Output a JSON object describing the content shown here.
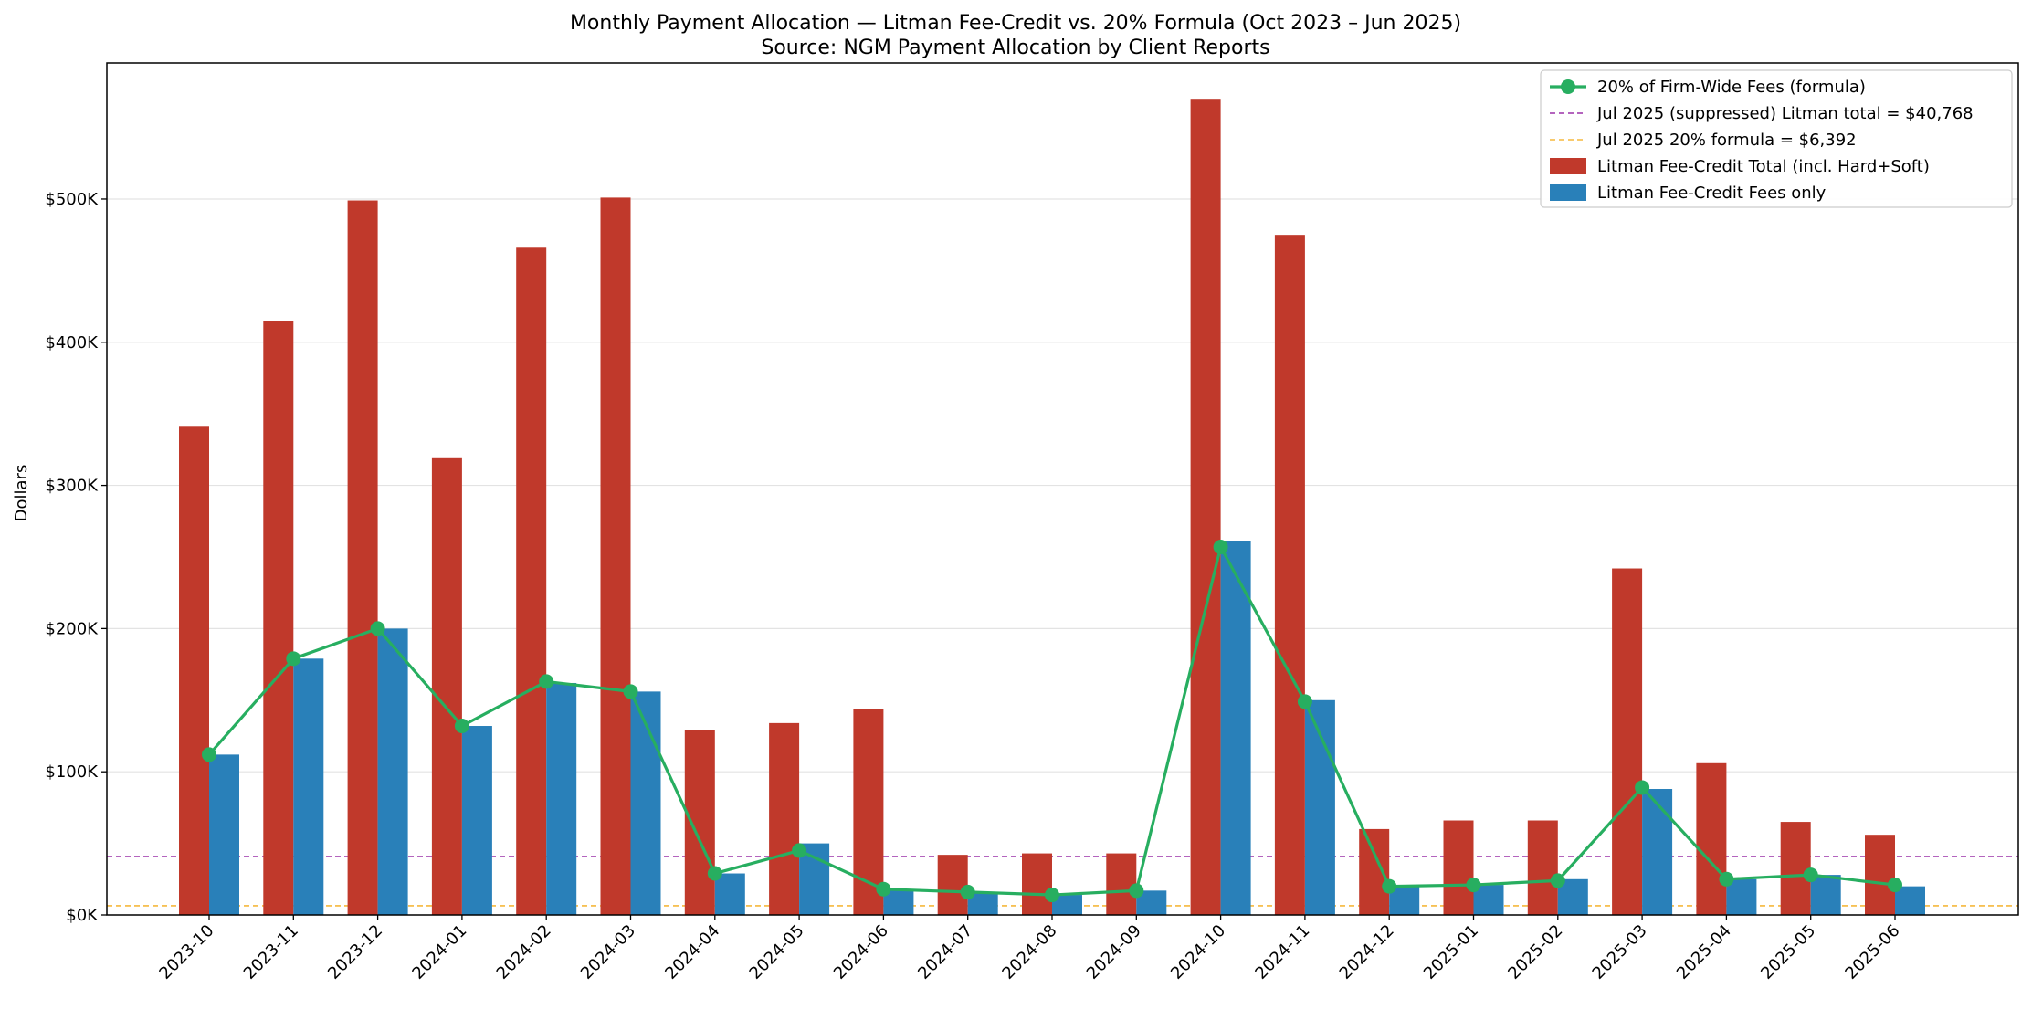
{
  "chart_data": {
    "type": "bar",
    "title": "Monthly Payment Allocation — Litman Fee-Credit vs. 20% Formula (Oct 2023 – Jun 2025)",
    "subtitle": "Source: NGM Payment Allocation by Client Reports",
    "xlabel": "",
    "ylabel": "Dollars",
    "ylim": [
      0,
      595000
    ],
    "yticks": [
      0,
      100000,
      200000,
      300000,
      400000,
      500000
    ],
    "ytick_labels": [
      "$0K",
      "$100K",
      "$200K",
      "$300K",
      "$400K",
      "$500K"
    ],
    "grid": "horizontal",
    "legend_position": "top-right",
    "categories": [
      "2023-10",
      "2023-11",
      "2023-12",
      "2024-01",
      "2024-02",
      "2024-03",
      "2024-04",
      "2024-05",
      "2024-06",
      "2024-07",
      "2024-08",
      "2024-09",
      "2024-10",
      "2024-11",
      "2024-12",
      "2025-01",
      "2025-02",
      "2025-03",
      "2025-04",
      "2025-05",
      "2025-06"
    ],
    "series": [
      {
        "name": "Litman Fee-Credit Total (incl. Hard+Soft)",
        "kind": "bar",
        "color": "#c0392b",
        "values": [
          341000,
          415000,
          499000,
          319000,
          466000,
          501000,
          129000,
          134000,
          144000,
          42000,
          43000,
          43000,
          570000,
          475000,
          60000,
          66000,
          66000,
          242000,
          106000,
          65000,
          56000
        ]
      },
      {
        "name": "Litman Fee-Credit Fees only",
        "kind": "bar",
        "color": "#2980b9",
        "values": [
          112000,
          179000,
          200000,
          132000,
          162000,
          156000,
          29000,
          50000,
          18000,
          15000,
          14000,
          17000,
          261000,
          150000,
          20000,
          21000,
          25000,
          88000,
          25000,
          28000,
          20000
        ]
      },
      {
        "name": "20% of Firm-Wide Fees (formula)",
        "kind": "line",
        "color": "#27ae60",
        "values": [
          112000,
          179000,
          200000,
          132000,
          163000,
          156000,
          29000,
          45000,
          18000,
          16000,
          14000,
          17000,
          257000,
          149000,
          20000,
          21000,
          24000,
          89000,
          25000,
          28000,
          21000
        ]
      }
    ],
    "reference_lines": [
      {
        "name": "Jul 2025 (suppressed) Litman total = $40,768",
        "value": 40768,
        "color": "#9b30a8"
      },
      {
        "name": "Jul 2025 20% formula = $6,392",
        "value": 6392,
        "color": "#f5b83d"
      }
    ],
    "legend_order": [
      "20% of Firm-Wide Fees (formula)",
      "Jul 2025 (suppressed) Litman total = $40,768",
      "Jul 2025 20% formula = $6,392",
      "Litman Fee-Credit Total (incl. Hard+Soft)",
      "Litman Fee-Credit Fees only"
    ]
  }
}
